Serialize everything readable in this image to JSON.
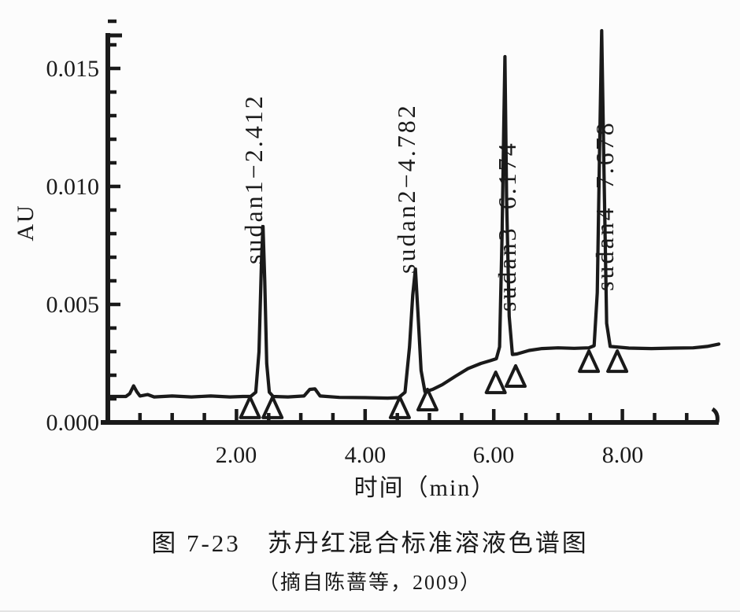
{
  "colors": {
    "ink": "#1a1a1a",
    "background": "#fcfcfc"
  },
  "figure": {
    "y_axis": {
      "label": "AU",
      "ticks": [
        "0.015",
        "0.010",
        "0.005",
        "0.000"
      ]
    },
    "x_axis": {
      "label": "时间（min）",
      "ticks": [
        "2.00",
        "4.00",
        "6.00",
        "8.00"
      ]
    },
    "caption": {
      "line1": "图 7-23　苏丹红混合标准溶液色谱图",
      "line2": "（摘自陈蔷等，2009）"
    }
  },
  "chart_data": {
    "type": "line",
    "title": "苏丹红混合标准溶液色谱图",
    "subtitle": "图 7-23",
    "source": "（摘自陈蔷等，2009）",
    "xlabel": "时间（min）",
    "ylabel": "AU",
    "xlim": [
      0,
      9.55
    ],
    "ylim": [
      0,
      0.0174
    ],
    "x_major_ticks": [
      2.0,
      4.0,
      6.0,
      8.0
    ],
    "x_minor_tick_interval": 0.5,
    "y_major_ticks": [
      0.0,
      0.005,
      0.01,
      0.015
    ],
    "y_minor_tick_interval": 0.001,
    "grid": false,
    "legend": false,
    "peaks": [
      {
        "name": "sudan1",
        "retention_time_min": 2.412,
        "apex_au": 0.0083,
        "label": "sudan1−2.412"
      },
      {
        "name": "sudan2",
        "retention_time_min": 4.782,
        "apex_au": 0.0065,
        "label": "sudan2−4.782"
      },
      {
        "name": "sudan3",
        "retention_time_min": 6.174,
        "apex_au": 0.0155,
        "label": "sudan3−6.174"
      },
      {
        "name": "sudan4",
        "retention_time_min": 7.678,
        "apex_au": 0.0166,
        "label": "sudan4−7.678"
      }
    ],
    "trace_points_t_au": [
      [
        0.0,
        0.0011
      ],
      [
        0.28,
        0.0011
      ],
      [
        0.34,
        0.00122
      ],
      [
        0.4,
        0.00155
      ],
      [
        0.45,
        0.0013
      ],
      [
        0.5,
        0.00112
      ],
      [
        0.62,
        0.00118
      ],
      [
        0.72,
        0.00108
      ],
      [
        1.0,
        0.00112
      ],
      [
        1.3,
        0.00108
      ],
      [
        1.6,
        0.00112
      ],
      [
        1.9,
        0.00108
      ],
      [
        2.1,
        0.0011
      ],
      [
        2.22,
        0.0011
      ],
      [
        2.3,
        0.00128
      ],
      [
        2.35,
        0.003
      ],
      [
        2.39,
        0.007
      ],
      [
        2.412,
        0.0083
      ],
      [
        2.44,
        0.006
      ],
      [
        2.47,
        0.0025
      ],
      [
        2.51,
        0.00128
      ],
      [
        2.57,
        0.0011
      ],
      [
        2.8,
        0.00108
      ],
      [
        3.05,
        0.00112
      ],
      [
        3.14,
        0.0014
      ],
      [
        3.22,
        0.00142
      ],
      [
        3.3,
        0.00112
      ],
      [
        3.6,
        0.00106
      ],
      [
        4.0,
        0.00105
      ],
      [
        4.35,
        0.00103
      ],
      [
        4.52,
        0.00105
      ],
      [
        4.62,
        0.00128
      ],
      [
        4.69,
        0.0032
      ],
      [
        4.74,
        0.0054
      ],
      [
        4.782,
        0.0065
      ],
      [
        4.82,
        0.0047
      ],
      [
        4.87,
        0.0022
      ],
      [
        4.93,
        0.0013
      ],
      [
        5.05,
        0.0014
      ],
      [
        5.2,
        0.0016
      ],
      [
        5.4,
        0.00195
      ],
      [
        5.6,
        0.00228
      ],
      [
        5.8,
        0.0025
      ],
      [
        5.95,
        0.00262
      ],
      [
        6.04,
        0.0027
      ],
      [
        6.09,
        0.0032
      ],
      [
        6.13,
        0.008
      ],
      [
        6.155,
        0.0125
      ],
      [
        6.174,
        0.0155
      ],
      [
        6.2,
        0.0095
      ],
      [
        6.24,
        0.0045
      ],
      [
        6.29,
        0.00288
      ],
      [
        6.36,
        0.0029
      ],
      [
        6.55,
        0.00305
      ],
      [
        6.75,
        0.00313
      ],
      [
        7.0,
        0.00316
      ],
      [
        7.25,
        0.00314
      ],
      [
        7.48,
        0.00316
      ],
      [
        7.56,
        0.00325
      ],
      [
        7.61,
        0.0055
      ],
      [
        7.645,
        0.0115
      ],
      [
        7.678,
        0.0166
      ],
      [
        7.715,
        0.0105
      ],
      [
        7.755,
        0.0042
      ],
      [
        7.81,
        0.00322
      ],
      [
        8.1,
        0.00315
      ],
      [
        8.45,
        0.00313
      ],
      [
        8.8,
        0.00315
      ],
      [
        9.1,
        0.00316
      ],
      [
        9.32,
        0.00322
      ],
      [
        9.5,
        0.00332
      ]
    ],
    "integration_marks_t_au": [
      [
        2.21,
        0.00107
      ],
      [
        2.56,
        0.00107
      ],
      [
        4.54,
        0.00107
      ],
      [
        4.97,
        0.0014
      ],
      [
        6.03,
        0.00213
      ],
      [
        6.34,
        0.0024
      ],
      [
        7.48,
        0.00303
      ],
      [
        7.92,
        0.00303
      ]
    ]
  }
}
